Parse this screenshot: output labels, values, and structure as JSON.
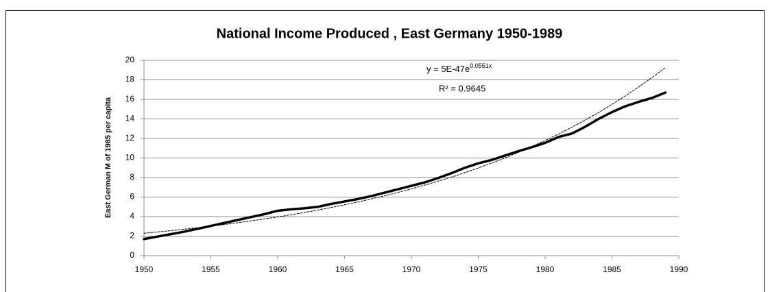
{
  "chart_data": {
    "type": "line",
    "title": "National Income Produced , East Germany 1950-1989",
    "y_label": "East German  M of 1985 per capita",
    "equation": "y = 5E-47e",
    "equation_exponent": "0.0551x",
    "r_squared": "R² = 0.9645",
    "x": [
      1950,
      1951,
      1952,
      1953,
      1954,
      1955,
      1956,
      1957,
      1958,
      1959,
      1960,
      1961,
      1962,
      1963,
      1964,
      1965,
      1966,
      1967,
      1968,
      1969,
      1970,
      1971,
      1972,
      1973,
      1974,
      1975,
      1976,
      1977,
      1978,
      1979,
      1980,
      1981,
      1982,
      1983,
      1984,
      1985,
      1986,
      1987,
      1988,
      1989
    ],
    "series": [
      {
        "color": "#000000",
        "line_style": "solid",
        "values": [
          1.7,
          1.95,
          2.2,
          2.45,
          2.75,
          3.05,
          3.35,
          3.65,
          3.95,
          4.25,
          4.6,
          4.75,
          4.85,
          5.0,
          5.3,
          5.55,
          5.8,
          6.1,
          6.45,
          6.8,
          7.15,
          7.5,
          7.95,
          8.45,
          9.0,
          9.45,
          9.8,
          10.25,
          10.7,
          11.1,
          11.55,
          12.15,
          12.5,
          13.2,
          14.0,
          14.7,
          15.3,
          15.75,
          16.15,
          16.7
        ]
      },
      {
        "color": "#000000",
        "line_style": "dashed",
        "values": [
          2.3,
          2.43,
          2.56,
          2.71,
          2.86,
          3.02,
          3.19,
          3.37,
          3.56,
          3.76,
          3.97,
          4.19,
          4.42,
          4.67,
          4.93,
          5.21,
          5.5,
          5.81,
          6.13,
          6.48,
          6.84,
          7.22,
          7.63,
          8.05,
          8.5,
          8.98,
          9.48,
          10.01,
          10.57,
          11.17,
          11.79,
          12.45,
          13.15,
          13.89,
          14.66,
          15.49,
          16.35,
          17.27,
          18.24,
          19.26
        ]
      }
    ],
    "xlim": [
      1950,
      1990
    ],
    "xticks": [
      1950,
      1955,
      1960,
      1965,
      1970,
      1975,
      1980,
      1985,
      1990
    ],
    "ylim": [
      0,
      20
    ],
    "yticks": [
      0,
      2,
      4,
      6,
      8,
      10,
      12,
      14,
      16,
      18,
      20
    ],
    "grid": true
  }
}
